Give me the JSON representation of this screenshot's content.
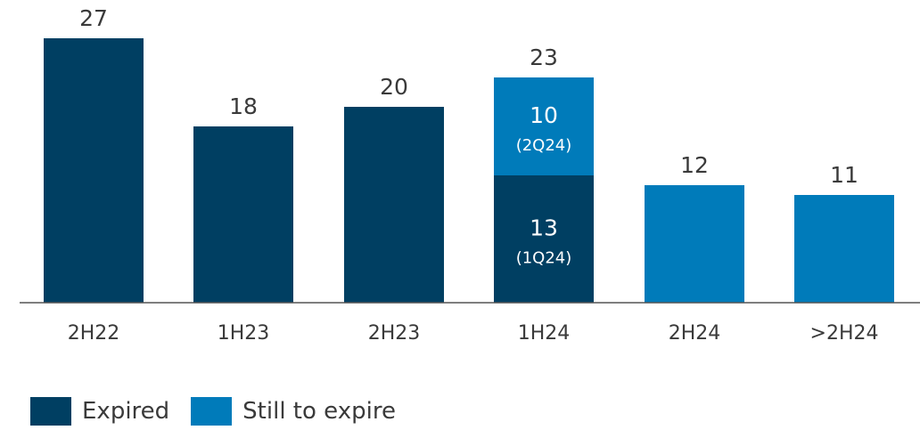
{
  "chart_data": {
    "type": "bar",
    "stacked": true,
    "categories": [
      "2H22",
      "1H23",
      "2H23",
      "1H24",
      "2H24",
      ">2H24"
    ],
    "series": [
      {
        "name": "Expired",
        "color": "#003f62",
        "values": [
          27,
          18,
          20,
          13,
          0,
          0
        ]
      },
      {
        "name": "Still to expire",
        "color": "#007bba",
        "values": [
          0,
          0,
          0,
          10,
          12,
          11
        ]
      }
    ],
    "totals": [
      27,
      18,
      20,
      23,
      12,
      11
    ],
    "segment_sublabels": {
      "1H24": {
        "Expired": "(1Q24)",
        "Still to expire": "(2Q24)"
      }
    },
    "ylim": [
      0,
      27
    ],
    "grid": false,
    "legend_position": "bottom-left"
  },
  "legend": {
    "items": [
      {
        "label": "Expired",
        "color": "#003f62"
      },
      {
        "label": "Still to expire",
        "color": "#007bba"
      }
    ]
  }
}
